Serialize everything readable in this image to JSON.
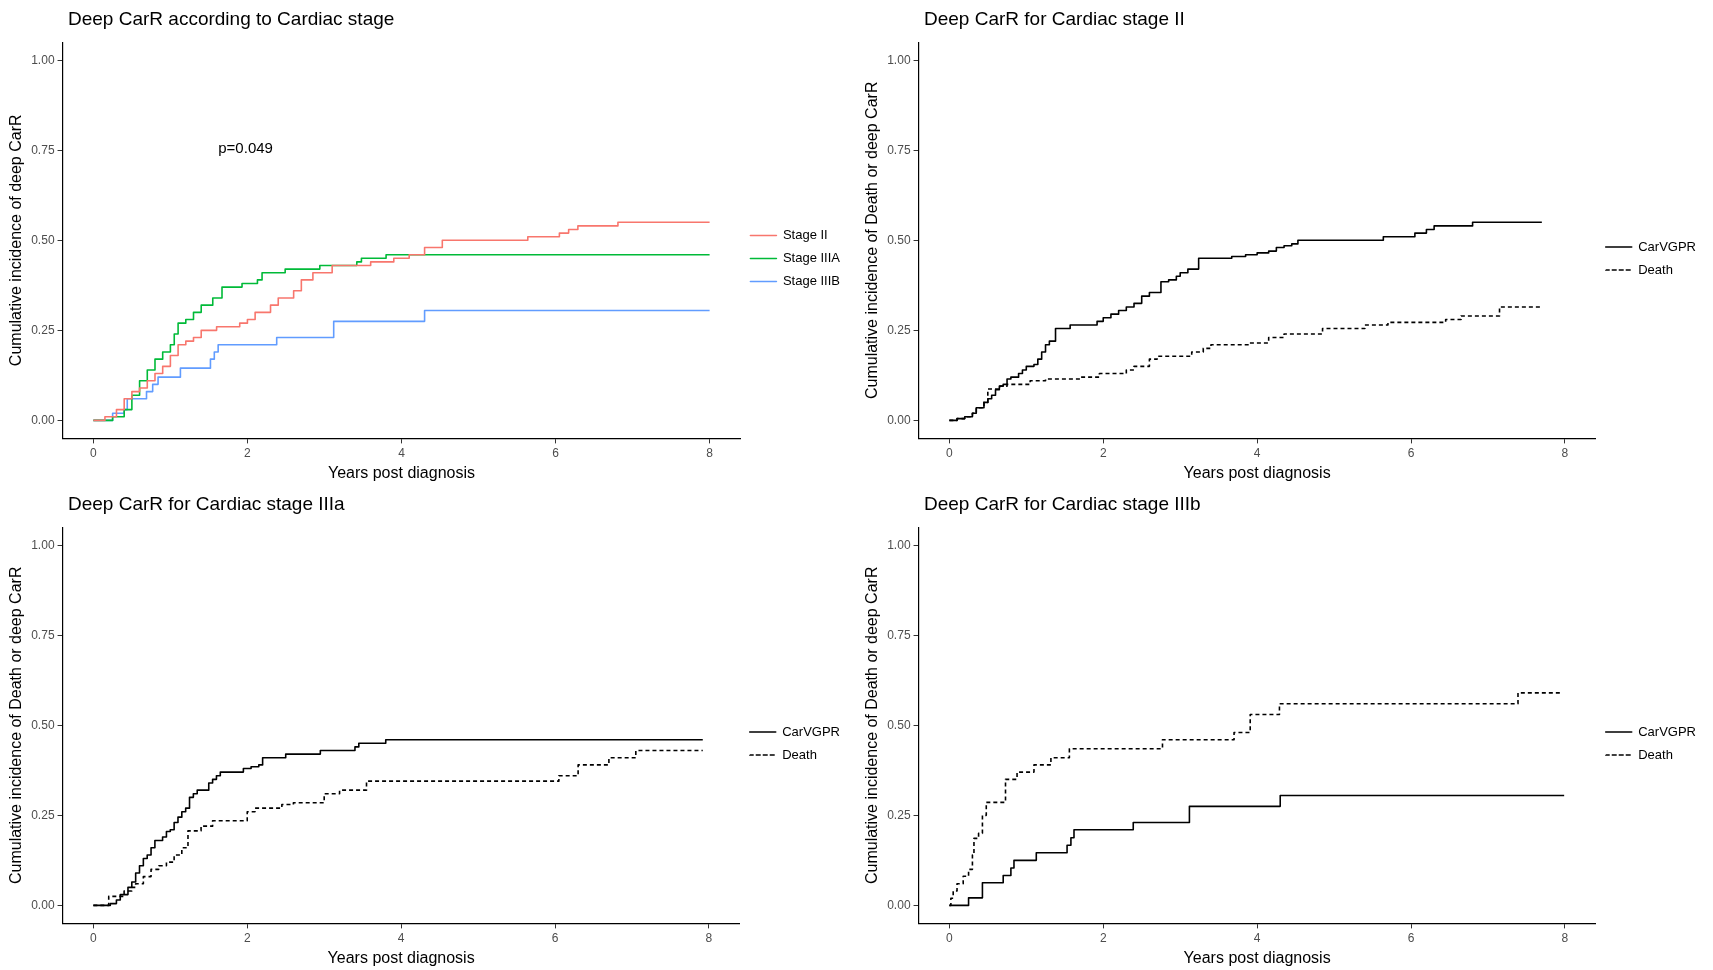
{
  "chart_data": [
    {
      "type": "step",
      "title": "Deep CarR according to Cardiac stage",
      "xlabel": "Years post diagnosis",
      "ylabel": "Cumulative incidence of deep CarR",
      "xlim": [
        -0.4,
        8.4
      ],
      "ylim": [
        -0.05,
        1.05
      ],
      "xticks": [
        0,
        2,
        4,
        6,
        8
      ],
      "yticks": [
        {
          "value": 0,
          "label": "0.00"
        },
        {
          "value": 0.25,
          "label": "0.25"
        },
        {
          "value": 0.5,
          "label": "0.50"
        },
        {
          "value": 0.75,
          "label": "0.75"
        },
        {
          "value": 1,
          "label": "1.00"
        }
      ],
      "grid": false,
      "legend": "right",
      "annotations": [
        "p=0.049"
      ],
      "series": [
        {
          "name": "Stage II",
          "color": "#f8766d",
          "line_style": "solid",
          "x": [
            0,
            0.15,
            0.3,
            0.4,
            0.5,
            0.6,
            0.7,
            0.8,
            0.9,
            1.0,
            1.1,
            1.2,
            1.3,
            1.4,
            1.6,
            1.9,
            2.0,
            2.1,
            2.3,
            2.4,
            2.6,
            2.7,
            2.85,
            3.1,
            3.6,
            3.9,
            4.1,
            4.3,
            4.53,
            5.64,
            6.05,
            6.17,
            6.29,
            6.81,
            8.0
          ],
          "values": [
            0,
            0.01,
            0.03,
            0.06,
            0.08,
            0.09,
            0.11,
            0.13,
            0.15,
            0.18,
            0.21,
            0.22,
            0.23,
            0.25,
            0.26,
            0.27,
            0.28,
            0.3,
            0.32,
            0.34,
            0.36,
            0.39,
            0.41,
            0.43,
            0.44,
            0.45,
            0.46,
            0.48,
            0.5,
            0.51,
            0.52,
            0.53,
            0.54,
            0.55,
            0.55
          ]
        },
        {
          "name": "Stage IIIA",
          "color": "#00ba38",
          "line_style": "solid",
          "x": [
            0,
            0.25,
            0.4,
            0.5,
            0.6,
            0.7,
            0.8,
            0.9,
            1.0,
            1.05,
            1.1,
            1.2,
            1.3,
            1.4,
            1.55,
            1.67,
            1.93,
            2.13,
            2.19,
            2.49,
            2.94,
            3.42,
            3.48,
            3.8,
            8.0
          ],
          "values": [
            0,
            0.01,
            0.03,
            0.07,
            0.11,
            0.14,
            0.17,
            0.19,
            0.21,
            0.24,
            0.27,
            0.28,
            0.3,
            0.32,
            0.34,
            0.37,
            0.38,
            0.39,
            0.41,
            0.42,
            0.43,
            0.44,
            0.45,
            0.46,
            0.46
          ]
        },
        {
          "name": "Stage IIIB",
          "color": "#619cff",
          "line_style": "solid",
          "x": [
            0,
            0.25,
            0.4,
            0.44,
            0.69,
            0.77,
            0.84,
            1.13,
            1.52,
            1.57,
            1.62,
            2.38,
            3.12,
            4.3,
            8.0
          ],
          "values": [
            0,
            0.02,
            0.03,
            0.06,
            0.08,
            0.1,
            0.12,
            0.145,
            0.17,
            0.19,
            0.21,
            0.23,
            0.275,
            0.305,
            0.305
          ]
        }
      ]
    },
    {
      "type": "step",
      "title": "Deep CarR for Cardiac stage II",
      "xlabel": "Years post diagnosis",
      "ylabel": "Cumulative incidence of Death or deep CarR",
      "xlim": [
        -0.4,
        8.4
      ],
      "ylim": [
        -0.05,
        1.05
      ],
      "xticks": [
        0,
        2,
        4,
        6,
        8
      ],
      "yticks": [
        {
          "value": 0,
          "label": "0.00"
        },
        {
          "value": 0.25,
          "label": "0.25"
        },
        {
          "value": 0.5,
          "label": "0.50"
        },
        {
          "value": 0.75,
          "label": "0.75"
        },
        {
          "value": 1,
          "label": "1.00"
        }
      ],
      "grid": false,
      "legend": "right",
      "series": [
        {
          "name": "CarVGPR",
          "color": "#000000",
          "line_style": "solid",
          "x": [
            0,
            0.1,
            0.2,
            0.3,
            0.35,
            0.45,
            0.5,
            0.55,
            0.6,
            0.65,
            0.7,
            0.75,
            0.8,
            0.9,
            0.95,
            1.0,
            1.1,
            1.15,
            1.2,
            1.25,
            1.3,
            1.38,
            1.57,
            1.92,
            2.0,
            2.1,
            2.2,
            2.3,
            2.4,
            2.5,
            2.6,
            2.75,
            2.85,
            2.95,
            3.0,
            3.1,
            3.24,
            3.67,
            3.85,
            4.0,
            4.15,
            4.25,
            4.35,
            4.45,
            4.53,
            5.64,
            6.05,
            6.2,
            6.3,
            6.8,
            7.7
          ],
          "values": [
            0,
            0.005,
            0.01,
            0.02,
            0.035,
            0.05,
            0.06,
            0.07,
            0.085,
            0.095,
            0.1,
            0.115,
            0.12,
            0.13,
            0.14,
            0.15,
            0.155,
            0.17,
            0.19,
            0.21,
            0.22,
            0.255,
            0.265,
            0.275,
            0.285,
            0.295,
            0.305,
            0.315,
            0.325,
            0.345,
            0.355,
            0.385,
            0.39,
            0.4,
            0.41,
            0.42,
            0.45,
            0.455,
            0.46,
            0.465,
            0.47,
            0.48,
            0.485,
            0.49,
            0.5,
            0.51,
            0.52,
            0.53,
            0.54,
            0.55,
            0.55
          ]
        },
        {
          "name": "Death",
          "color": "#000000",
          "line_style": "dashed",
          "x": [
            0,
            0.1,
            0.2,
            0.3,
            0.35,
            0.45,
            0.5,
            0.66,
            0.75,
            1.05,
            1.25,
            1.7,
            1.95,
            2.3,
            2.4,
            2.6,
            2.7,
            3.15,
            3.3,
            3.4,
            3.9,
            4.15,
            4.35,
            4.85,
            5.4,
            5.7,
            6.45,
            6.65,
            7.15,
            7.7
          ],
          "values": [
            0,
            0.005,
            0.01,
            0.02,
            0.035,
            0.05,
            0.087,
            0.095,
            0.1,
            0.11,
            0.115,
            0.12,
            0.13,
            0.14,
            0.15,
            0.17,
            0.178,
            0.19,
            0.2,
            0.21,
            0.215,
            0.23,
            0.24,
            0.255,
            0.265,
            0.272,
            0.28,
            0.29,
            0.315,
            0.315
          ]
        }
      ]
    },
    {
      "type": "step",
      "title": "Deep CarR for Cardiac stage IIIa",
      "xlabel": "Years post diagnosis",
      "ylabel": "Cumulative incidence of Death or deep CarR",
      "xlim": [
        -0.4,
        8.4
      ],
      "ylim": [
        -0.05,
        1.05
      ],
      "xticks": [
        0,
        2,
        4,
        6,
        8
      ],
      "yticks": [
        {
          "value": 0,
          "label": "0.00"
        },
        {
          "value": 0.25,
          "label": "0.25"
        },
        {
          "value": 0.5,
          "label": "0.50"
        },
        {
          "value": 0.75,
          "label": "0.75"
        },
        {
          "value": 1,
          "label": "1.00"
        }
      ],
      "grid": false,
      "legend": "right",
      "series": [
        {
          "name": "CarVGPR",
          "color": "#000000",
          "line_style": "solid",
          "x": [
            0,
            0.22,
            0.3,
            0.35,
            0.45,
            0.5,
            0.55,
            0.6,
            0.65,
            0.7,
            0.75,
            0.8,
            0.9,
            0.95,
            1.0,
            1.05,
            1.1,
            1.15,
            1.2,
            1.25,
            1.3,
            1.35,
            1.5,
            1.55,
            1.6,
            1.65,
            1.95,
            2.05,
            2.15,
            2.2,
            2.5,
            2.95,
            3.4,
            3.45,
            3.8,
            7.92
          ],
          "values": [
            0,
            0.005,
            0.015,
            0.03,
            0.05,
            0.065,
            0.09,
            0.11,
            0.13,
            0.14,
            0.16,
            0.18,
            0.19,
            0.205,
            0.21,
            0.23,
            0.245,
            0.26,
            0.27,
            0.3,
            0.31,
            0.32,
            0.34,
            0.35,
            0.36,
            0.37,
            0.38,
            0.385,
            0.39,
            0.41,
            0.42,
            0.43,
            0.44,
            0.45,
            0.46,
            0.46
          ]
        },
        {
          "name": "Death",
          "color": "#000000",
          "line_style": "dashed",
          "x": [
            0,
            0.2,
            0.4,
            0.5,
            0.55,
            0.65,
            0.75,
            0.85,
            0.95,
            1.05,
            1.15,
            1.23,
            1.4,
            1.55,
            2.0,
            2.1,
            2.45,
            2.6,
            3.0,
            3.2,
            3.55,
            6.05,
            6.3,
            6.7,
            7.05,
            7.92
          ],
          "values": [
            0,
            0.025,
            0.04,
            0.05,
            0.06,
            0.08,
            0.1,
            0.11,
            0.12,
            0.14,
            0.16,
            0.207,
            0.22,
            0.235,
            0.26,
            0.27,
            0.28,
            0.285,
            0.31,
            0.32,
            0.345,
            0.36,
            0.39,
            0.41,
            0.43,
            0.43
          ]
        }
      ]
    },
    {
      "type": "step",
      "title": "Deep CarR for Cardiac stage IIIb",
      "xlabel": "Years post diagnosis",
      "ylabel": "Cumulative incidence of Death or deep CarR",
      "xlim": [
        -0.4,
        8.4
      ],
      "ylim": [
        -0.05,
        1.05
      ],
      "xticks": [
        0,
        2,
        4,
        6,
        8
      ],
      "yticks": [
        {
          "value": 0,
          "label": "0.00"
        },
        {
          "value": 0.25,
          "label": "0.25"
        },
        {
          "value": 0.5,
          "label": "0.50"
        },
        {
          "value": 0.75,
          "label": "0.75"
        },
        {
          "value": 1,
          "label": "1.00"
        }
      ],
      "grid": false,
      "legend": "right",
      "series": [
        {
          "name": "CarVGPR",
          "color": "#000000",
          "line_style": "solid",
          "x": [
            0,
            0.25,
            0.43,
            0.7,
            0.8,
            0.84,
            1.13,
            1.53,
            1.58,
            1.62,
            2.39,
            3.12,
            4.3,
            7.99
          ],
          "values": [
            0,
            0.021,
            0.063,
            0.083,
            0.104,
            0.125,
            0.146,
            0.167,
            0.188,
            0.21,
            0.23,
            0.275,
            0.305,
            0.305
          ]
        },
        {
          "name": "Death",
          "color": "#000000",
          "line_style": "dashed",
          "x": [
            0,
            0.02,
            0.05,
            0.1,
            0.18,
            0.25,
            0.3,
            0.32,
            0.38,
            0.43,
            0.48,
            0.73,
            0.88,
            1.1,
            1.32,
            1.56,
            2.77,
            3.7,
            3.91,
            4.29,
            7.39,
            7.96
          ],
          "values": [
            0,
            0.02,
            0.04,
            0.06,
            0.081,
            0.1,
            0.14,
            0.186,
            0.2,
            0.25,
            0.286,
            0.35,
            0.37,
            0.39,
            0.41,
            0.435,
            0.46,
            0.48,
            0.53,
            0.56,
            0.59,
            0.59
          ]
        }
      ]
    }
  ]
}
